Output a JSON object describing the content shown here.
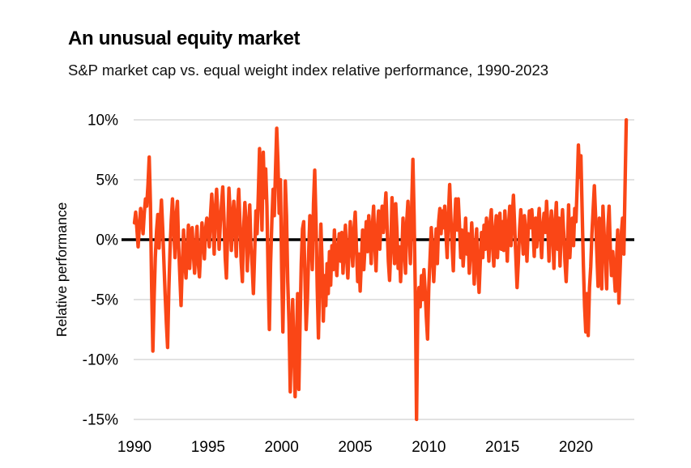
{
  "header": {
    "title": "An unusual equity market",
    "subtitle": "S&P market cap vs. equal weight index relative performance, 1990-2023"
  },
  "chart": {
    "line_color": "#fa4616",
    "zero_line_color": "#000000",
    "grid_color": "#d9d9d9",
    "text_color": "#000000"
  },
  "chart_data": {
    "type": "line",
    "title": "An unusual equity market",
    "subtitle": "S&P market cap vs. equal weight index relative performance, 1990-2023",
    "xlabel": "",
    "ylabel": "Relative performance",
    "x_ticks": [
      1990,
      1995,
      2000,
      2005,
      2010,
      2015,
      2020
    ],
    "y_tick_values": [
      10,
      5,
      0,
      -5,
      -10,
      -15
    ],
    "y_tick_labels": [
      "10%",
      "5%",
      "0%",
      "-5%",
      "-10%",
      "-15%"
    ],
    "ylim": [
      -15,
      10
    ],
    "xlim": [
      1990,
      2023.5
    ],
    "x_start_year": 1990,
    "x_interval": "monthly",
    "zero_baseline": 0,
    "grid": true,
    "legend": "none",
    "values": [
      1.4,
      2.3,
      0.9,
      -0.6,
      1.2,
      2.6,
      1.8,
      0.5,
      2.2,
      3.4,
      2.8,
      4.6,
      6.9,
      3.0,
      -4.0,
      -9.3,
      -5.0,
      -1.5,
      0.8,
      2.1,
      -0.7,
      1.5,
      3.3,
      1.0,
      -1.8,
      -4.5,
      -7.0,
      -9.0,
      -4.2,
      -0.8,
      1.6,
      3.4,
      1.2,
      -1.5,
      2.0,
      3.2,
      -0.5,
      -3.0,
      -5.5,
      -2.2,
      0.8,
      -1.8,
      -3.2,
      -0.9,
      1.2,
      -2.4,
      -0.5,
      1.0,
      -1.2,
      -2.8,
      -0.6,
      1.1,
      -1.9,
      -3.1,
      -0.8,
      1.4,
      0.2,
      -1.6,
      0.9,
      1.8,
      1.2,
      -0.6,
      2.1,
      3.8,
      1.5,
      -1.2,
      2.6,
      4.2,
      2.0,
      -0.8,
      1.4,
      3.0,
      4.4,
      1.8,
      -1.5,
      -3.2,
      0.6,
      4.3,
      2.2,
      -0.9,
      1.8,
      3.2,
      0.8,
      -1.4,
      2.4,
      4.2,
      1.5,
      -1.8,
      -3.5,
      0.9,
      3.1,
      1.2,
      -2.6,
      0.8,
      2.9,
      -0.6,
      -2.2,
      -4.5,
      -1.0,
      2.4,
      0.5,
      3.8,
      7.6,
      4.0,
      0.8,
      7.3,
      3.5,
      5.9,
      2.8,
      -3.0,
      -7.5,
      -2.0,
      1.5,
      4.2,
      2.0,
      5.8,
      9.3,
      6.5,
      2.2,
      5.0,
      -2.5,
      -7.7,
      -1.5,
      4.9,
      2.0,
      -3.5,
      -7.0,
      -12.7,
      -8.0,
      -5.0,
      -9.5,
      -13.1,
      -9.0,
      -4.5,
      -12.5,
      -7.0,
      -2.0,
      0.9,
      1.5,
      -3.0,
      -7.5,
      -5.0,
      -1.2,
      2.0,
      0.5,
      -2.5,
      3.0,
      5.8,
      1.5,
      -4.0,
      -8.2,
      -3.5,
      1.3,
      -2.0,
      -6.8,
      -3.0,
      -5.5,
      -2.0,
      -4.5,
      -1.0,
      -3.8,
      -0.5,
      -2.5,
      0.8,
      -1.5,
      -3.0,
      -0.8,
      0.5,
      -1.8,
      0.6,
      -2.8,
      -0.5,
      1.2,
      -1.5,
      -3.2,
      -0.8,
      1.5,
      -0.5,
      -2.2,
      0.9,
      2.3,
      -0.6,
      -3.5,
      -1.2,
      -4.3,
      -1.8,
      0.8,
      -2.5,
      -0.6,
      1.5,
      -1.0,
      2.0,
      0.5,
      -2.0,
      1.2,
      2.8,
      -0.5,
      -2.6,
      0.9,
      2.4,
      -0.8,
      1.6,
      2.8,
      0.6,
      2.2,
      3.9,
      1.0,
      -1.8,
      -3.4,
      -0.9,
      3.5,
      1.2,
      -2.0,
      3.0,
      0.8,
      -2.4,
      -0.6,
      -3.5,
      -1.2,
      1.8,
      -0.5,
      -2.8,
      1.5,
      3.2,
      0.6,
      -2.0,
      2.5,
      6.7,
      2.0,
      -4.5,
      -15.0,
      -6.0,
      -4.0,
      -5.6,
      -3.0,
      -5.0,
      -2.5,
      -4.2,
      -6.5,
      -8.3,
      -4.0,
      -1.5,
      1.0,
      -0.8,
      -3.5,
      -1.2,
      0.9,
      -2.0,
      1.5,
      2.6,
      0.5,
      2.4,
      1.0,
      2.8,
      0.5,
      -1.5,
      2.2,
      4.6,
      1.8,
      -0.6,
      -2.6,
      1.2,
      3.4,
      0.8,
      3.4,
      1.2,
      -1.5,
      0.8,
      -2.2,
      -0.6,
      1.8,
      -1.2,
      0.5,
      -2.8,
      -0.9,
      1.4,
      -0.5,
      -3.7,
      -1.2,
      0.9,
      -2.5,
      -4.4,
      -1.8,
      0.6,
      -1.5,
      1.2,
      -0.8,
      1.8,
      0.5,
      -1.8,
      1.4,
      2.5,
      -0.6,
      -2.2,
      0.8,
      2.0,
      -1.5,
      0.9,
      2.2,
      -0.8,
      1.5,
      -0.9,
      2.4,
      0.6,
      -1.8,
      1.2,
      2.8,
      -0.5,
      1.8,
      3.7,
      1.2,
      -1.5,
      -4.0,
      -1.8,
      0.9,
      2.5,
      0.6,
      -1.2,
      2.0,
      0.5,
      -1.8,
      0.8,
      2.4,
      1.0,
      2.5,
      0.8,
      -1.4,
      1.8,
      -0.6,
      1.2,
      2.6,
      0.5,
      -1.5,
      1.0,
      2.2,
      0.6,
      3.2,
      1.2,
      -1.8,
      0.9,
      2.4,
      0.5,
      -2.4,
      1.5,
      3.1,
      -0.8,
      1.8,
      -2.2,
      0.8,
      2.5,
      0.5,
      -1.8,
      -3.5,
      -0.9,
      2.9,
      -1.5,
      0.6,
      1.8,
      -0.5,
      2.6,
      1.5,
      4.5,
      7.9,
      5.2,
      7.0,
      2.5,
      -2.0,
      -5.5,
      -7.7,
      -4.5,
      -8.0,
      -4.0,
      -2.3,
      0.5,
      2.5,
      4.5,
      2.0,
      -1.0,
      -3.9,
      1.8,
      -0.5,
      -4.1,
      2.8,
      0.5,
      -1.5,
      -4.1,
      1.0,
      2.8,
      -0.8,
      -3.0,
      -1.0,
      -2.5,
      -4.3,
      -2.0,
      0.8,
      -5.3,
      -2.5,
      0.5,
      1.8,
      -1.2,
      4.5,
      10.0
    ]
  }
}
